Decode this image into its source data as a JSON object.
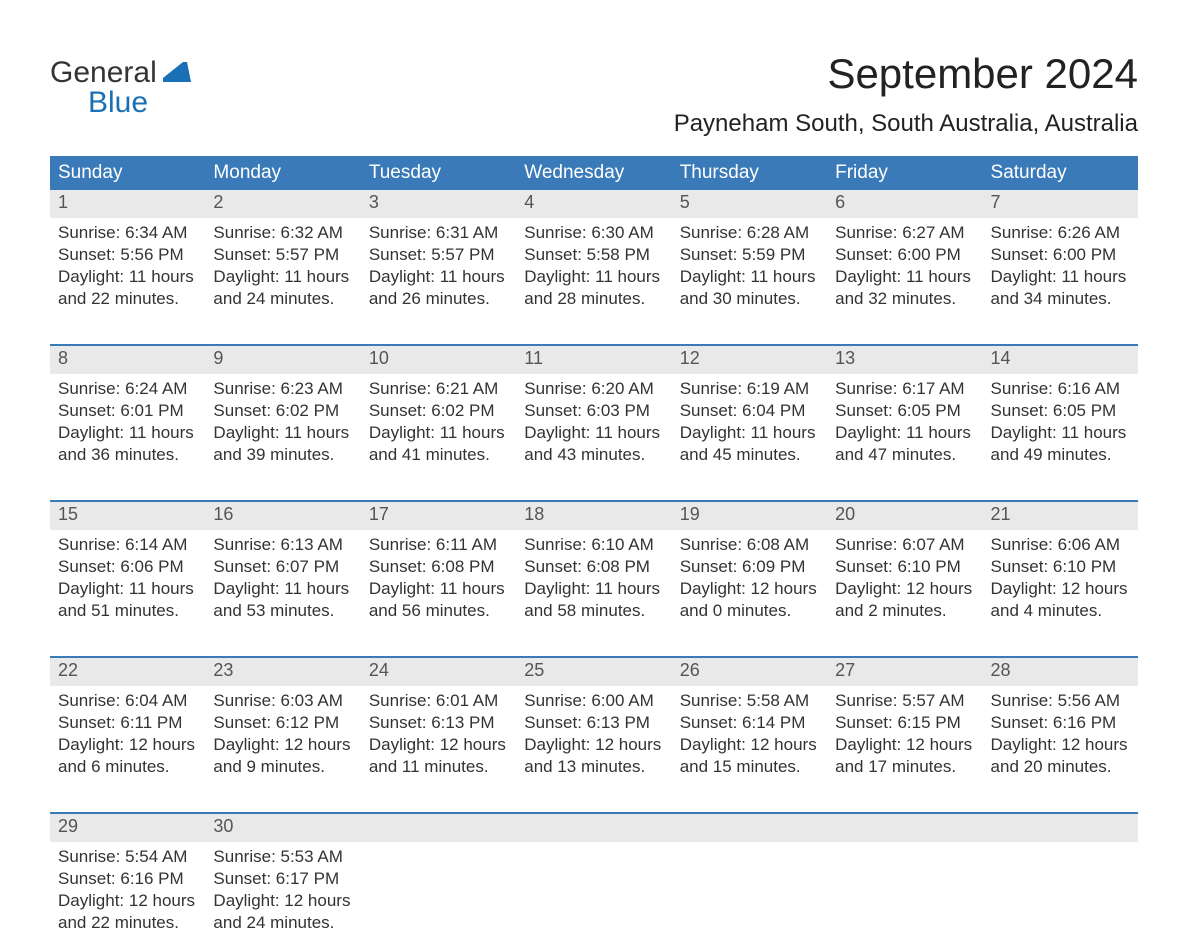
{
  "brand": {
    "part1": "General",
    "part2": "Blue"
  },
  "title": "September 2024",
  "location": "Payneham South, South Australia, Australia",
  "colors": {
    "header_bg": "#3a7ab8",
    "header_text": "#ffffff",
    "daynum_bg": "#e9e9e9",
    "daynum_text": "#555555",
    "body_text": "#333333",
    "rule": "#3a7ab8",
    "logo_blue": "#1a6fb5",
    "page_bg": "#ffffff"
  },
  "weekdays": [
    "Sunday",
    "Monday",
    "Tuesday",
    "Wednesday",
    "Thursday",
    "Friday",
    "Saturday"
  ],
  "weeks": [
    [
      {
        "n": "1",
        "sr": "Sunrise: 6:34 AM",
        "ss": "Sunset: 5:56 PM",
        "d1": "Daylight: 11 hours",
        "d2": "and 22 minutes."
      },
      {
        "n": "2",
        "sr": "Sunrise: 6:32 AM",
        "ss": "Sunset: 5:57 PM",
        "d1": "Daylight: 11 hours",
        "d2": "and 24 minutes."
      },
      {
        "n": "3",
        "sr": "Sunrise: 6:31 AM",
        "ss": "Sunset: 5:57 PM",
        "d1": "Daylight: 11 hours",
        "d2": "and 26 minutes."
      },
      {
        "n": "4",
        "sr": "Sunrise: 6:30 AM",
        "ss": "Sunset: 5:58 PM",
        "d1": "Daylight: 11 hours",
        "d2": "and 28 minutes."
      },
      {
        "n": "5",
        "sr": "Sunrise: 6:28 AM",
        "ss": "Sunset: 5:59 PM",
        "d1": "Daylight: 11 hours",
        "d2": "and 30 minutes."
      },
      {
        "n": "6",
        "sr": "Sunrise: 6:27 AM",
        "ss": "Sunset: 6:00 PM",
        "d1": "Daylight: 11 hours",
        "d2": "and 32 minutes."
      },
      {
        "n": "7",
        "sr": "Sunrise: 6:26 AM",
        "ss": "Sunset: 6:00 PM",
        "d1": "Daylight: 11 hours",
        "d2": "and 34 minutes."
      }
    ],
    [
      {
        "n": "8",
        "sr": "Sunrise: 6:24 AM",
        "ss": "Sunset: 6:01 PM",
        "d1": "Daylight: 11 hours",
        "d2": "and 36 minutes."
      },
      {
        "n": "9",
        "sr": "Sunrise: 6:23 AM",
        "ss": "Sunset: 6:02 PM",
        "d1": "Daylight: 11 hours",
        "d2": "and 39 minutes."
      },
      {
        "n": "10",
        "sr": "Sunrise: 6:21 AM",
        "ss": "Sunset: 6:02 PM",
        "d1": "Daylight: 11 hours",
        "d2": "and 41 minutes."
      },
      {
        "n": "11",
        "sr": "Sunrise: 6:20 AM",
        "ss": "Sunset: 6:03 PM",
        "d1": "Daylight: 11 hours",
        "d2": "and 43 minutes."
      },
      {
        "n": "12",
        "sr": "Sunrise: 6:19 AM",
        "ss": "Sunset: 6:04 PM",
        "d1": "Daylight: 11 hours",
        "d2": "and 45 minutes."
      },
      {
        "n": "13",
        "sr": "Sunrise: 6:17 AM",
        "ss": "Sunset: 6:05 PM",
        "d1": "Daylight: 11 hours",
        "d2": "and 47 minutes."
      },
      {
        "n": "14",
        "sr": "Sunrise: 6:16 AM",
        "ss": "Sunset: 6:05 PM",
        "d1": "Daylight: 11 hours",
        "d2": "and 49 minutes."
      }
    ],
    [
      {
        "n": "15",
        "sr": "Sunrise: 6:14 AM",
        "ss": "Sunset: 6:06 PM",
        "d1": "Daylight: 11 hours",
        "d2": "and 51 minutes."
      },
      {
        "n": "16",
        "sr": "Sunrise: 6:13 AM",
        "ss": "Sunset: 6:07 PM",
        "d1": "Daylight: 11 hours",
        "d2": "and 53 minutes."
      },
      {
        "n": "17",
        "sr": "Sunrise: 6:11 AM",
        "ss": "Sunset: 6:08 PM",
        "d1": "Daylight: 11 hours",
        "d2": "and 56 minutes."
      },
      {
        "n": "18",
        "sr": "Sunrise: 6:10 AM",
        "ss": "Sunset: 6:08 PM",
        "d1": "Daylight: 11 hours",
        "d2": "and 58 minutes."
      },
      {
        "n": "19",
        "sr": "Sunrise: 6:08 AM",
        "ss": "Sunset: 6:09 PM",
        "d1": "Daylight: 12 hours",
        "d2": "and 0 minutes."
      },
      {
        "n": "20",
        "sr": "Sunrise: 6:07 AM",
        "ss": "Sunset: 6:10 PM",
        "d1": "Daylight: 12 hours",
        "d2": "and 2 minutes."
      },
      {
        "n": "21",
        "sr": "Sunrise: 6:06 AM",
        "ss": "Sunset: 6:10 PM",
        "d1": "Daylight: 12 hours",
        "d2": "and 4 minutes."
      }
    ],
    [
      {
        "n": "22",
        "sr": "Sunrise: 6:04 AM",
        "ss": "Sunset: 6:11 PM",
        "d1": "Daylight: 12 hours",
        "d2": "and 6 minutes."
      },
      {
        "n": "23",
        "sr": "Sunrise: 6:03 AM",
        "ss": "Sunset: 6:12 PM",
        "d1": "Daylight: 12 hours",
        "d2": "and 9 minutes."
      },
      {
        "n": "24",
        "sr": "Sunrise: 6:01 AM",
        "ss": "Sunset: 6:13 PM",
        "d1": "Daylight: 12 hours",
        "d2": "and 11 minutes."
      },
      {
        "n": "25",
        "sr": "Sunrise: 6:00 AM",
        "ss": "Sunset: 6:13 PM",
        "d1": "Daylight: 12 hours",
        "d2": "and 13 minutes."
      },
      {
        "n": "26",
        "sr": "Sunrise: 5:58 AM",
        "ss": "Sunset: 6:14 PM",
        "d1": "Daylight: 12 hours",
        "d2": "and 15 minutes."
      },
      {
        "n": "27",
        "sr": "Sunrise: 5:57 AM",
        "ss": "Sunset: 6:15 PM",
        "d1": "Daylight: 12 hours",
        "d2": "and 17 minutes."
      },
      {
        "n": "28",
        "sr": "Sunrise: 5:56 AM",
        "ss": "Sunset: 6:16 PM",
        "d1": "Daylight: 12 hours",
        "d2": "and 20 minutes."
      }
    ],
    [
      {
        "n": "29",
        "sr": "Sunrise: 5:54 AM",
        "ss": "Sunset: 6:16 PM",
        "d1": "Daylight: 12 hours",
        "d2": "and 22 minutes."
      },
      {
        "n": "30",
        "sr": "Sunrise: 5:53 AM",
        "ss": "Sunset: 6:17 PM",
        "d1": "Daylight: 12 hours",
        "d2": "and 24 minutes."
      },
      null,
      null,
      null,
      null,
      null
    ]
  ]
}
